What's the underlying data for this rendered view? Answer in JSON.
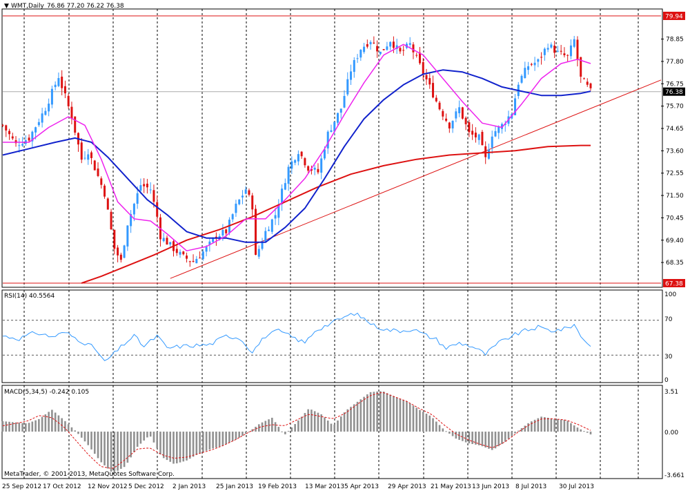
{
  "header": {
    "symbol_label": "WMT,Daily",
    "ohlc_label": "76.86 77.20 76.22 76.38"
  },
  "colors": {
    "background": "#ffffff",
    "bull_candle": "#3399ff",
    "bear_candle": "#dd1111",
    "ma_fast": "#ee22ee",
    "ma_mid": "#1122cc",
    "ma_slow": "#dd1111",
    "rsi_line": "#3399ff",
    "macd_hist": "#909090",
    "macd_signal": "#dd1111",
    "grid": "#000000"
  },
  "price_axis": {
    "ticks": [
      "78.85",
      "77.80",
      "76.75",
      "75.70",
      "74.65",
      "73.60",
      "72.55",
      "71.50",
      "70.45",
      "69.40",
      "68.35"
    ],
    "level_high": "79.94",
    "level_low": "67.38",
    "current": "76.38"
  },
  "rsi": {
    "label": "RSI(14) 40.5564",
    "ticks": [
      "100",
      "70",
      "30",
      "0"
    ]
  },
  "macd": {
    "label": "MACD(5,34,5) -0.242 0.105",
    "ticks": [
      "3.51",
      "0.00",
      "-3.661"
    ]
  },
  "copyright": "MetaTrader, © 2001-2013, MetaQuotes Software Corp.",
  "chart_data": {
    "type": "candlestick",
    "title": "WMT,Daily 76.86 77.20 76.22 76.38",
    "y_range": [
      67.38,
      79.94
    ],
    "x_labels": [
      "25 Sep 2012",
      "17 Oct 2012",
      "12 Nov 2012",
      "5 Dec 2012",
      "2 Jan 2013",
      "25 Jan 2013",
      "19 Feb 2013",
      "13 Mar 2013",
      "5 Apr 2013",
      "29 Apr 2013",
      "21 May 2013",
      "13 Jun 2013",
      "8 Jul 2013",
      "30 Jul 2013"
    ],
    "close_path": [
      [
        0,
        74.8
      ],
      [
        4,
        73.9
      ],
      [
        8,
        74.2
      ],
      [
        13,
        75.6
      ],
      [
        17,
        77.1
      ],
      [
        21,
        75.2
      ],
      [
        24,
        73.2
      ],
      [
        26,
        73.6
      ],
      [
        31,
        71.6
      ],
      [
        34,
        69.0
      ],
      [
        36,
        68.4
      ],
      [
        38,
        70.2
      ],
      [
        42,
        72.0
      ],
      [
        45,
        71.8
      ],
      [
        47,
        70.5
      ],
      [
        48,
        69.6
      ],
      [
        52,
        69.0
      ],
      [
        55,
        68.6
      ],
      [
        58,
        68.4
      ],
      [
        62,
        69.0
      ],
      [
        65,
        69.6
      ],
      [
        68,
        69.8
      ],
      [
        71,
        71.0
      ],
      [
        74,
        71.8
      ],
      [
        76,
        71.0
      ],
      [
        77,
        68.6
      ],
      [
        80,
        69.8
      ],
      [
        83,
        70.6
      ],
      [
        87,
        72.8
      ],
      [
        90,
        73.6
      ],
      [
        93,
        72.8
      ],
      [
        96,
        72.6
      ],
      [
        99,
        74.4
      ],
      [
        103,
        75.6
      ],
      [
        106,
        77.4
      ],
      [
        109,
        78.4
      ],
      [
        112,
        78.8
      ],
      [
        115,
        78.2
      ],
      [
        118,
        78.8
      ],
      [
        121,
        78.2
      ],
      [
        124,
        78.6
      ],
      [
        127,
        77.6
      ],
      [
        130,
        76.6
      ],
      [
        133,
        75.6
      ],
      [
        136,
        74.8
      ],
      [
        139,
        75.6
      ],
      [
        142,
        74.4
      ],
      [
        145,
        74.2
      ],
      [
        147,
        73.2
      ],
      [
        149,
        74.4
      ],
      [
        152,
        74.8
      ],
      [
        155,
        75.4
      ],
      [
        157,
        76.8
      ],
      [
        160,
        77.6
      ],
      [
        163,
        77.8
      ],
      [
        166,
        78.6
      ],
      [
        169,
        78.2
      ],
      [
        172,
        78.0
      ],
      [
        174,
        78.8
      ],
      [
        176,
        77.0
      ],
      [
        178,
        76.6
      ],
      [
        179,
        76.38
      ]
    ],
    "ma_fast_path": [
      [
        0,
        74.0
      ],
      [
        8,
        74.0
      ],
      [
        14,
        74.7
      ],
      [
        20,
        75.2
      ],
      [
        25,
        74.8
      ],
      [
        30,
        73.2
      ],
      [
        35,
        71.2
      ],
      [
        40,
        70.4
      ],
      [
        45,
        70.3
      ],
      [
        50,
        69.7
      ],
      [
        56,
        68.9
      ],
      [
        62,
        69.1
      ],
      [
        68,
        69.6
      ],
      [
        74,
        70.4
      ],
      [
        80,
        70.4
      ],
      [
        86,
        71.3
      ],
      [
        92,
        72.3
      ],
      [
        98,
        73.7
      ],
      [
        104,
        75.3
      ],
      [
        110,
        76.8
      ],
      [
        116,
        78.1
      ],
      [
        122,
        78.6
      ],
      [
        128,
        78.1
      ],
      [
        134,
        77.0
      ],
      [
        140,
        75.9
      ],
      [
        146,
        74.9
      ],
      [
        152,
        74.7
      ],
      [
        158,
        75.8
      ],
      [
        164,
        77.0
      ],
      [
        170,
        77.7
      ],
      [
        175,
        77.9
      ],
      [
        179,
        77.7
      ]
    ],
    "ma_mid_path": [
      [
        0,
        73.4
      ],
      [
        8,
        73.7
      ],
      [
        16,
        74.0
      ],
      [
        22,
        74.2
      ],
      [
        27,
        74.0
      ],
      [
        32,
        73.3
      ],
      [
        38,
        72.3
      ],
      [
        44,
        71.3
      ],
      [
        50,
        70.6
      ],
      [
        56,
        69.8
      ],
      [
        62,
        69.5
      ],
      [
        68,
        69.5
      ],
      [
        74,
        69.3
      ],
      [
        80,
        69.3
      ],
      [
        86,
        70.0
      ],
      [
        92,
        70.9
      ],
      [
        98,
        72.3
      ],
      [
        104,
        73.8
      ],
      [
        110,
        75.1
      ],
      [
        116,
        76.0
      ],
      [
        122,
        76.7
      ],
      [
        128,
        77.2
      ],
      [
        134,
        77.4
      ],
      [
        140,
        77.3
      ],
      [
        146,
        77.0
      ],
      [
        152,
        76.6
      ],
      [
        158,
        76.4
      ],
      [
        164,
        76.2
      ],
      [
        170,
        76.2
      ],
      [
        176,
        76.3
      ],
      [
        179,
        76.4
      ]
    ],
    "ma_slow_path": [
      [
        24,
        67.38
      ],
      [
        30,
        67.7
      ],
      [
        38,
        68.2
      ],
      [
        46,
        68.7
      ],
      [
        56,
        69.4
      ],
      [
        66,
        69.9
      ],
      [
        76,
        70.5
      ],
      [
        86,
        71.2
      ],
      [
        96,
        71.9
      ],
      [
        106,
        72.5
      ],
      [
        116,
        72.9
      ],
      [
        126,
        73.2
      ],
      [
        136,
        73.4
      ],
      [
        146,
        73.5
      ],
      [
        156,
        73.6
      ],
      [
        166,
        73.8
      ],
      [
        176,
        73.85
      ],
      [
        179,
        73.85
      ]
    ],
    "trendline": [
      [
        51,
        67.6
      ],
      [
        200,
        76.9
      ]
    ],
    "rsi_path": [
      [
        0,
        52
      ],
      [
        5,
        49
      ],
      [
        10,
        56
      ],
      [
        15,
        51
      ],
      [
        19,
        56
      ],
      [
        23,
        48
      ],
      [
        28,
        38
      ],
      [
        31,
        22
      ],
      [
        34,
        32
      ],
      [
        37,
        43
      ],
      [
        40,
        52
      ],
      [
        43,
        40
      ],
      [
        47,
        52
      ],
      [
        50,
        38
      ],
      [
        54,
        40
      ],
      [
        58,
        41
      ],
      [
        63,
        42
      ],
      [
        68,
        52
      ],
      [
        72,
        50
      ],
      [
        76,
        34
      ],
      [
        80,
        52
      ],
      [
        84,
        58
      ],
      [
        88,
        51
      ],
      [
        92,
        44
      ],
      [
        95,
        58
      ],
      [
        99,
        65
      ],
      [
        103,
        72
      ],
      [
        107,
        78
      ],
      [
        110,
        72
      ],
      [
        113,
        64
      ],
      [
        117,
        59
      ],
      [
        121,
        58
      ],
      [
        125,
        60
      ],
      [
        128,
        54
      ],
      [
        132,
        48
      ],
      [
        135,
        38
      ],
      [
        139,
        44
      ],
      [
        143,
        40
      ],
      [
        147,
        31
      ],
      [
        151,
        44
      ],
      [
        155,
        52
      ],
      [
        159,
        58
      ],
      [
        163,
        62
      ],
      [
        167,
        58
      ],
      [
        171,
        60
      ],
      [
        174,
        65
      ],
      [
        176,
        52
      ],
      [
        179,
        40.56
      ]
    ],
    "macd_hist": [
      0.9,
      0.8,
      0.7,
      1.1,
      1.9,
      1.0,
      0.0,
      -1.2,
      -2.6,
      -3.6,
      -3.0,
      -1.3,
      -0.3,
      -2.2,
      -2.8,
      -2.5,
      -1.9,
      -1.5,
      -1.2,
      -0.7,
      -0.1,
      0.7,
      1.2,
      -0.3,
      0.8,
      2.0,
      1.5,
      0.5,
      1.8,
      2.6,
      3.4,
      3.5,
      3.0,
      2.6,
      1.9,
      1.3,
      0.2,
      -0.6,
      -1.0,
      -1.2,
      -1.6,
      -0.9,
      0.0,
      0.8,
      1.3,
      1.1,
      1.0,
      0.3,
      -0.242
    ],
    "macd_signal": [
      0.5,
      0.7,
      0.9,
      1.4,
      1.2,
      0.4,
      -0.8,
      -2.0,
      -3.0,
      -3.2,
      -2.4,
      -1.5,
      -1.4,
      -2.0,
      -2.3,
      -2.2,
      -1.9,
      -1.6,
      -1.2,
      -0.7,
      -0.1,
      0.4,
      0.6,
      0.5,
      1.0,
      1.5,
      1.3,
      1.1,
      1.6,
      2.4,
      3.1,
      3.4,
      3.0,
      2.6,
      2.0,
      1.5,
      0.6,
      -0.2,
      -0.7,
      -1.1,
      -1.4,
      -0.9,
      -0.1,
      0.6,
      1.1,
      1.1,
      1.0,
      0.6,
      0.105
    ]
  }
}
